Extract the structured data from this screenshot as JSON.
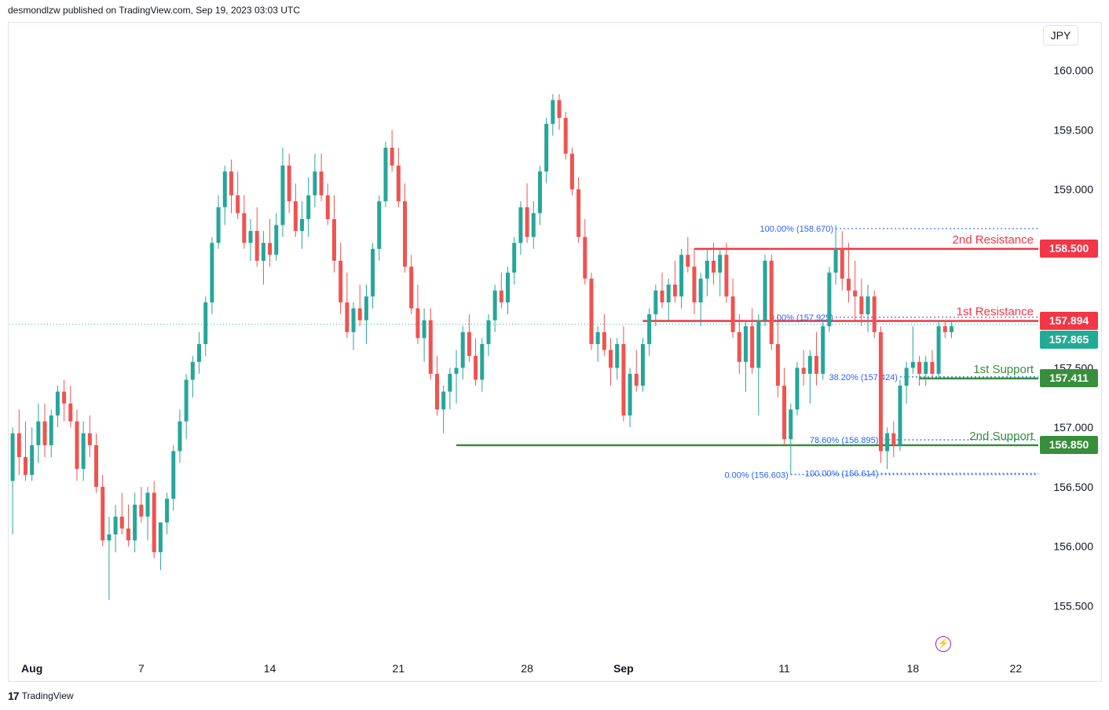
{
  "header": {
    "publisher_text": "desmondlzw published on TradingView.com, Sep 19, 2023 03:03 UTC"
  },
  "footer": {
    "brand": "TradingView",
    "logo_glyph": "17"
  },
  "toolbar": {
    "currency": "JPY",
    "alert_icon": "lightning-icon"
  },
  "colors": {
    "up": "#26a69a",
    "down": "#ef5350",
    "resistance": "#f23645",
    "support": "#388e3c",
    "fib": "#2962ff",
    "fib_text": "#2962ff",
    "last_price": "#22ab94"
  },
  "chart_data": {
    "type": "candlestick",
    "title": "",
    "ylim": [
      155.1,
      160.2
    ],
    "y_ticks": [
      "160.000",
      "159.500",
      "159.000",
      "157.500",
      "157.000",
      "156.500",
      "156.000",
      "155.500"
    ],
    "y_tick_values": [
      160.0,
      159.5,
      159.0,
      157.5,
      157.0,
      156.5,
      156.0,
      155.5
    ],
    "x_ticks": [
      {
        "label": "Aug",
        "bar": 3,
        "bold": true
      },
      {
        "label": "7",
        "bar": 20,
        "bold": false
      },
      {
        "label": "14",
        "bar": 40,
        "bold": false
      },
      {
        "label": "21",
        "bar": 60,
        "bold": false
      },
      {
        "label": "28",
        "bar": 80,
        "bold": false
      },
      {
        "label": "Sep",
        "bar": 95,
        "bold": true
      },
      {
        "label": "11",
        "bar": 120,
        "bold": false
      },
      {
        "label": "18",
        "bar": 140,
        "bold": false
      },
      {
        "label": "22",
        "bar": 156,
        "bold": false
      }
    ],
    "x_range": [
      0,
      160
    ],
    "levels": [
      {
        "name": "2nd Resistance",
        "price": 158.5,
        "label": "158.500",
        "kind": "resistance",
        "from_bar": 106
      },
      {
        "name": "1st Resistance",
        "price": 157.894,
        "label": "157.894",
        "kind": "resistance",
        "from_bar": 98
      },
      {
        "name": "1st Support",
        "price": 157.411,
        "label": "157.411",
        "kind": "support",
        "from_bar": 141
      },
      {
        "name": "2nd Support",
        "price": 156.85,
        "label": "156.850",
        "kind": "support",
        "from_bar": 69
      }
    ],
    "last_price": {
      "price": 157.865,
      "label": "157.865"
    },
    "fib_labels": [
      {
        "text": "100.00% (158.670)",
        "price": 158.67,
        "from_bar": 128
      },
      {
        "text": "0.00% (157.925)",
        "price": 157.925,
        "from_bar": 128
      },
      {
        "text": "38.20% (157.424)",
        "price": 157.424,
        "from_bar": 138
      },
      {
        "text": "78.60% (156.895)",
        "price": 156.895,
        "from_bar": 135
      },
      {
        "text": "0.00% (156.603)",
        "price": 156.603,
        "from_bar": 121
      },
      {
        "text": "100.00% (156.614)",
        "price": 156.614,
        "from_bar": 135
      }
    ],
    "candles": [
      [
        156.55,
        157.0,
        156.1,
        156.95
      ],
      [
        156.95,
        157.15,
        156.6,
        156.75
      ],
      [
        156.75,
        157.05,
        156.55,
        156.6
      ],
      [
        156.6,
        157.0,
        156.55,
        156.85
      ],
      [
        156.85,
        157.2,
        156.7,
        157.05
      ],
      [
        157.05,
        157.2,
        156.75,
        156.85
      ],
      [
        156.85,
        157.15,
        156.75,
        157.1
      ],
      [
        157.1,
        157.35,
        157.0,
        157.3
      ],
      [
        157.3,
        157.4,
        157.05,
        157.2
      ],
      [
        157.2,
        157.35,
        157.0,
        157.05
      ],
      [
        157.05,
        157.15,
        156.55,
        156.65
      ],
      [
        156.65,
        157.05,
        156.55,
        156.95
      ],
      [
        156.95,
        157.1,
        156.75,
        156.85
      ],
      [
        156.85,
        156.95,
        156.45,
        156.5
      ],
      [
        156.5,
        156.6,
        156.0,
        156.05
      ],
      [
        156.05,
        156.25,
        155.55,
        156.1
      ],
      [
        156.1,
        156.35,
        155.95,
        156.25
      ],
      [
        156.25,
        156.45,
        156.1,
        156.15
      ],
      [
        156.15,
        156.35,
        156.0,
        156.05
      ],
      [
        156.05,
        156.45,
        155.95,
        156.35
      ],
      [
        156.35,
        156.5,
        156.2,
        156.25
      ],
      [
        156.25,
        156.5,
        156.05,
        156.45
      ],
      [
        156.45,
        156.55,
        155.9,
        155.95
      ],
      [
        155.95,
        156.2,
        155.8,
        156.2
      ],
      [
        156.2,
        156.45,
        156.1,
        156.4
      ],
      [
        156.4,
        156.85,
        156.3,
        156.8
      ],
      [
        156.8,
        157.15,
        156.7,
        157.05
      ],
      [
        157.05,
        157.45,
        156.9,
        157.4
      ],
      [
        157.4,
        157.6,
        157.25,
        157.55
      ],
      [
        157.55,
        157.8,
        157.45,
        157.7
      ],
      [
        157.7,
        158.1,
        157.6,
        158.05
      ],
      [
        158.05,
        158.6,
        157.95,
        158.55
      ],
      [
        158.55,
        158.95,
        158.5,
        158.85
      ],
      [
        158.85,
        159.2,
        158.7,
        159.15
      ],
      [
        159.15,
        159.25,
        158.8,
        158.95
      ],
      [
        158.95,
        159.15,
        158.75,
        158.8
      ],
      [
        158.8,
        158.95,
        158.5,
        158.55
      ],
      [
        158.55,
        158.75,
        158.4,
        158.65
      ],
      [
        158.65,
        158.85,
        158.35,
        158.4
      ],
      [
        158.4,
        158.65,
        158.2,
        158.55
      ],
      [
        158.55,
        158.75,
        158.35,
        158.45
      ],
      [
        158.45,
        158.8,
        158.4,
        158.7
      ],
      [
        158.7,
        159.35,
        158.6,
        159.2
      ],
      [
        159.2,
        159.3,
        158.8,
        158.9
      ],
      [
        158.9,
        159.05,
        158.6,
        158.65
      ],
      [
        158.65,
        158.9,
        158.5,
        158.75
      ],
      [
        158.75,
        159.1,
        158.6,
        158.95
      ],
      [
        158.95,
        159.3,
        158.85,
        159.15
      ],
      [
        159.15,
        159.3,
        158.9,
        158.95
      ],
      [
        158.95,
        159.05,
        158.7,
        158.75
      ],
      [
        158.75,
        158.95,
        158.3,
        158.4
      ],
      [
        158.4,
        158.55,
        157.95,
        158.05
      ],
      [
        158.05,
        158.3,
        157.75,
        157.8
      ],
      [
        157.8,
        158.05,
        157.65,
        158.0
      ],
      [
        158.0,
        158.2,
        157.85,
        157.9
      ],
      [
        157.9,
        158.2,
        157.7,
        158.1
      ],
      [
        158.1,
        158.55,
        158.0,
        158.5
      ],
      [
        158.5,
        158.95,
        158.4,
        158.9
      ],
      [
        158.9,
        159.4,
        158.85,
        159.35
      ],
      [
        159.35,
        159.5,
        159.15,
        159.2
      ],
      [
        159.2,
        159.35,
        158.85,
        158.9
      ],
      [
        158.9,
        159.05,
        158.3,
        158.35
      ],
      [
        158.35,
        158.45,
        157.95,
        158.0
      ],
      [
        158.0,
        158.2,
        157.7,
        157.75
      ],
      [
        157.75,
        158.0,
        157.55,
        157.9
      ],
      [
        157.9,
        158.0,
        157.4,
        157.45
      ],
      [
        157.45,
        157.6,
        157.1,
        157.15
      ],
      [
        157.15,
        157.35,
        156.95,
        157.3
      ],
      [
        157.3,
        157.5,
        157.15,
        157.45
      ],
      [
        157.45,
        157.65,
        157.2,
        157.5
      ],
      [
        157.5,
        157.85,
        157.4,
        157.8
      ],
      [
        157.8,
        157.95,
        157.55,
        157.6
      ],
      [
        157.6,
        157.75,
        157.35,
        157.4
      ],
      [
        157.4,
        157.75,
        157.3,
        157.7
      ],
      [
        157.7,
        157.95,
        157.6,
        157.9
      ],
      [
        157.9,
        158.2,
        157.8,
        158.15
      ],
      [
        158.15,
        158.3,
        158.0,
        158.05
      ],
      [
        158.05,
        158.35,
        157.95,
        158.3
      ],
      [
        158.3,
        158.6,
        158.2,
        158.55
      ],
      [
        158.55,
        158.9,
        158.45,
        158.85
      ],
      [
        158.85,
        159.05,
        158.55,
        158.6
      ],
      [
        158.6,
        158.9,
        158.5,
        158.8
      ],
      [
        158.8,
        159.2,
        158.7,
        159.15
      ],
      [
        159.15,
        159.6,
        159.05,
        159.55
      ],
      [
        159.55,
        159.8,
        159.45,
        159.75
      ],
      [
        159.75,
        159.8,
        159.5,
        159.6
      ],
      [
        159.6,
        159.65,
        159.25,
        159.3
      ],
      [
        159.3,
        159.35,
        158.95,
        159.0
      ],
      [
        159.0,
        159.1,
        158.55,
        158.6
      ],
      [
        158.6,
        158.75,
        158.2,
        158.25
      ],
      [
        158.25,
        158.3,
        157.65,
        157.7
      ],
      [
        157.7,
        157.85,
        157.55,
        157.8
      ],
      [
        157.8,
        157.95,
        157.6,
        157.65
      ],
      [
        157.65,
        157.75,
        157.35,
        157.5
      ],
      [
        157.5,
        157.75,
        157.4,
        157.7
      ],
      [
        157.7,
        157.85,
        157.05,
        157.1
      ],
      [
        157.1,
        157.5,
        157.0,
        157.45
      ],
      [
        157.45,
        157.65,
        157.3,
        157.35
      ],
      [
        157.35,
        157.75,
        157.3,
        157.7
      ],
      [
        157.7,
        158.0,
        157.6,
        157.95
      ],
      [
        157.95,
        158.2,
        157.85,
        158.15
      ],
      [
        158.15,
        158.3,
        158.0,
        158.05
      ],
      [
        158.05,
        158.25,
        157.9,
        158.2
      ],
      [
        158.2,
        158.4,
        158.05,
        158.1
      ],
      [
        158.1,
        158.5,
        158.0,
        158.45
      ],
      [
        158.45,
        158.6,
        158.3,
        158.35
      ],
      [
        158.35,
        158.5,
        157.95,
        158.05
      ],
      [
        158.05,
        158.3,
        157.85,
        158.25
      ],
      [
        158.25,
        158.5,
        158.1,
        158.4
      ],
      [
        158.4,
        158.55,
        158.2,
        158.3
      ],
      [
        158.3,
        158.5,
        158.1,
        158.45
      ],
      [
        158.45,
        158.55,
        158.05,
        158.1
      ],
      [
        158.1,
        158.25,
        157.75,
        157.8
      ],
      [
        157.8,
        157.95,
        157.45,
        157.55
      ],
      [
        157.55,
        157.9,
        157.3,
        157.85
      ],
      [
        157.85,
        158.0,
        157.45,
        157.5
      ],
      [
        157.5,
        157.95,
        157.1,
        157.9
      ],
      [
        157.9,
        158.45,
        157.85,
        158.4
      ],
      [
        158.4,
        158.45,
        157.65,
        157.7
      ],
      [
        157.7,
        157.95,
        157.25,
        157.35
      ],
      [
        157.35,
        157.5,
        156.85,
        156.9
      ],
      [
        156.9,
        157.2,
        156.6,
        157.15
      ],
      [
        157.15,
        157.55,
        157.1,
        157.5
      ],
      [
        157.5,
        157.65,
        157.35,
        157.45
      ],
      [
        157.45,
        157.65,
        157.2,
        157.6
      ],
      [
        157.6,
        157.8,
        157.35,
        157.45
      ],
      [
        157.45,
        157.9,
        157.4,
        157.85
      ],
      [
        157.85,
        158.35,
        157.8,
        158.3
      ],
      [
        158.3,
        158.7,
        158.2,
        158.5
      ],
      [
        158.5,
        158.65,
        158.15,
        158.25
      ],
      [
        158.25,
        158.55,
        158.05,
        158.15
      ],
      [
        158.15,
        158.4,
        157.9,
        158.1
      ],
      [
        158.1,
        158.25,
        157.85,
        157.95
      ],
      [
        157.95,
        158.2,
        157.8,
        158.1
      ],
      [
        158.1,
        158.15,
        157.75,
        157.8
      ],
      [
        157.8,
        157.85,
        156.7,
        156.8
      ],
      [
        156.8,
        157.0,
        156.65,
        156.95
      ],
      [
        156.95,
        157.05,
        156.75,
        156.85
      ],
      [
        156.85,
        157.4,
        156.8,
        157.35
      ],
      [
        157.35,
        157.55,
        157.2,
        157.5
      ],
      [
        157.5,
        157.85,
        157.45,
        157.55
      ],
      [
        157.55,
        157.6,
        157.35,
        157.45
      ],
      [
        157.45,
        157.6,
        157.35,
        157.55
      ],
      [
        157.55,
        157.65,
        157.4,
        157.45
      ],
      [
        157.45,
        157.9,
        157.4,
        157.85
      ],
      [
        157.85,
        157.9,
        157.75,
        157.8
      ],
      [
        157.8,
        157.9,
        157.75,
        157.85
      ]
    ]
  }
}
